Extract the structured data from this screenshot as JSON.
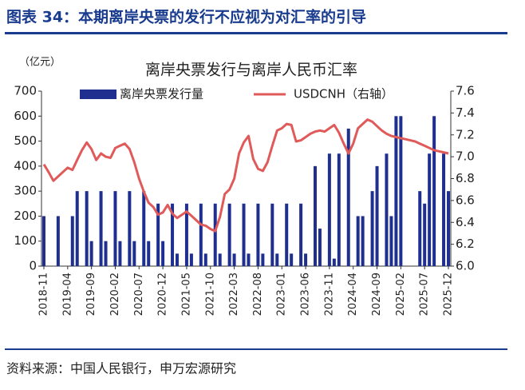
{
  "header": {
    "title": "图表 34：本期离岸央票的发行不应视为对汇率的引导"
  },
  "chart_data": {
    "type": "bar",
    "title": "离岸央票发行与离岸人民币汇率",
    "y_label": "（亿元）",
    "source": "资料来源：中国人民银行，申万宏源研究",
    "categories": [
      "2018-11",
      null,
      null,
      null,
      null,
      "2019-04",
      null,
      null,
      null,
      null,
      "2019-09",
      null,
      null,
      null,
      null,
      "2020-02",
      null,
      null,
      null,
      null,
      "2020-07",
      null,
      null,
      null,
      null,
      "2020-12",
      null,
      null,
      null,
      null,
      "2021-05",
      null,
      null,
      null,
      null,
      "2021-10",
      null,
      null,
      null,
      null,
      "2022-03",
      null,
      null,
      null,
      null,
      "2022-08",
      null,
      null,
      null,
      null,
      "2023-01",
      null,
      null,
      null,
      null,
      "2023-06",
      null,
      null,
      null,
      null,
      "2023-11",
      null,
      null,
      null,
      null,
      "2024-04",
      null,
      null,
      null,
      null,
      "2024-09",
      null,
      null,
      null,
      null,
      "2025-02",
      null,
      null,
      null,
      null,
      "2025-07",
      null,
      null,
      null,
      null,
      "2025-12"
    ],
    "series": [
      {
        "name": "离岸央票发行量",
        "type": "bar",
        "color": "#1f2f8f",
        "values": [
          200,
          null,
          null,
          200,
          null,
          null,
          200,
          300,
          null,
          300,
          100,
          null,
          300,
          100,
          null,
          300,
          100,
          null,
          300,
          100,
          null,
          300,
          100,
          null,
          250,
          100,
          null,
          250,
          50,
          null,
          250,
          50,
          null,
          250,
          50,
          null,
          250,
          50,
          null,
          250,
          50,
          null,
          250,
          50,
          null,
          250,
          50,
          null,
          250,
          50,
          null,
          250,
          50,
          null,
          250,
          50,
          null,
          400,
          150,
          null,
          450,
          30,
          450,
          null,
          550,
          null,
          200,
          200,
          null,
          300,
          400,
          null,
          450,
          200,
          600,
          600,
          null,
          null,
          null,
          300,
          250,
          450,
          600,
          null,
          450,
          300
        ]
      },
      {
        "name": "USDCNH（右轴）",
        "type": "line",
        "axis": "y2",
        "color": "#e05a5a",
        "values": [
          6.93,
          6.86,
          6.78,
          6.82,
          6.86,
          6.9,
          6.88,
          6.97,
          7.06,
          7.13,
          7.07,
          6.97,
          7.03,
          7.0,
          6.99,
          7.08,
          7.1,
          7.12,
          7.07,
          6.95,
          6.8,
          6.68,
          6.58,
          6.54,
          6.47,
          6.49,
          6.56,
          6.48,
          6.44,
          6.47,
          6.5,
          6.46,
          6.42,
          6.38,
          6.37,
          6.34,
          6.32,
          6.45,
          6.66,
          6.7,
          6.8,
          7.03,
          7.13,
          7.19,
          6.98,
          6.89,
          6.87,
          6.95,
          7.1,
          7.24,
          7.26,
          7.3,
          7.29,
          7.14,
          7.15,
          7.18,
          7.21,
          7.23,
          7.24,
          7.23,
          7.26,
          7.29,
          7.22,
          7.12,
          7.03,
          7.12,
          7.26,
          7.3,
          7.34,
          7.32,
          7.28,
          7.24,
          7.21,
          7.19,
          7.18,
          7.17,
          7.16,
          7.15,
          7.14,
          7.12,
          7.1,
          7.08,
          7.06,
          7.05,
          7.04,
          7.03
        ]
      }
    ],
    "ylim": [
      0,
      700
    ],
    "yticks": [
      0,
      100,
      200,
      300,
      400,
      500,
      600,
      700
    ],
    "y2lim": [
      6.0,
      7.6
    ],
    "y2ticks": [
      {
        "value": 6.0,
        "label": "6.0"
      },
      6.2,
      6.4,
      6.6,
      6.8,
      {
        "value": 7.0,
        "label": "7.0"
      },
      7.2,
      7.4,
      7.6
    ]
  }
}
